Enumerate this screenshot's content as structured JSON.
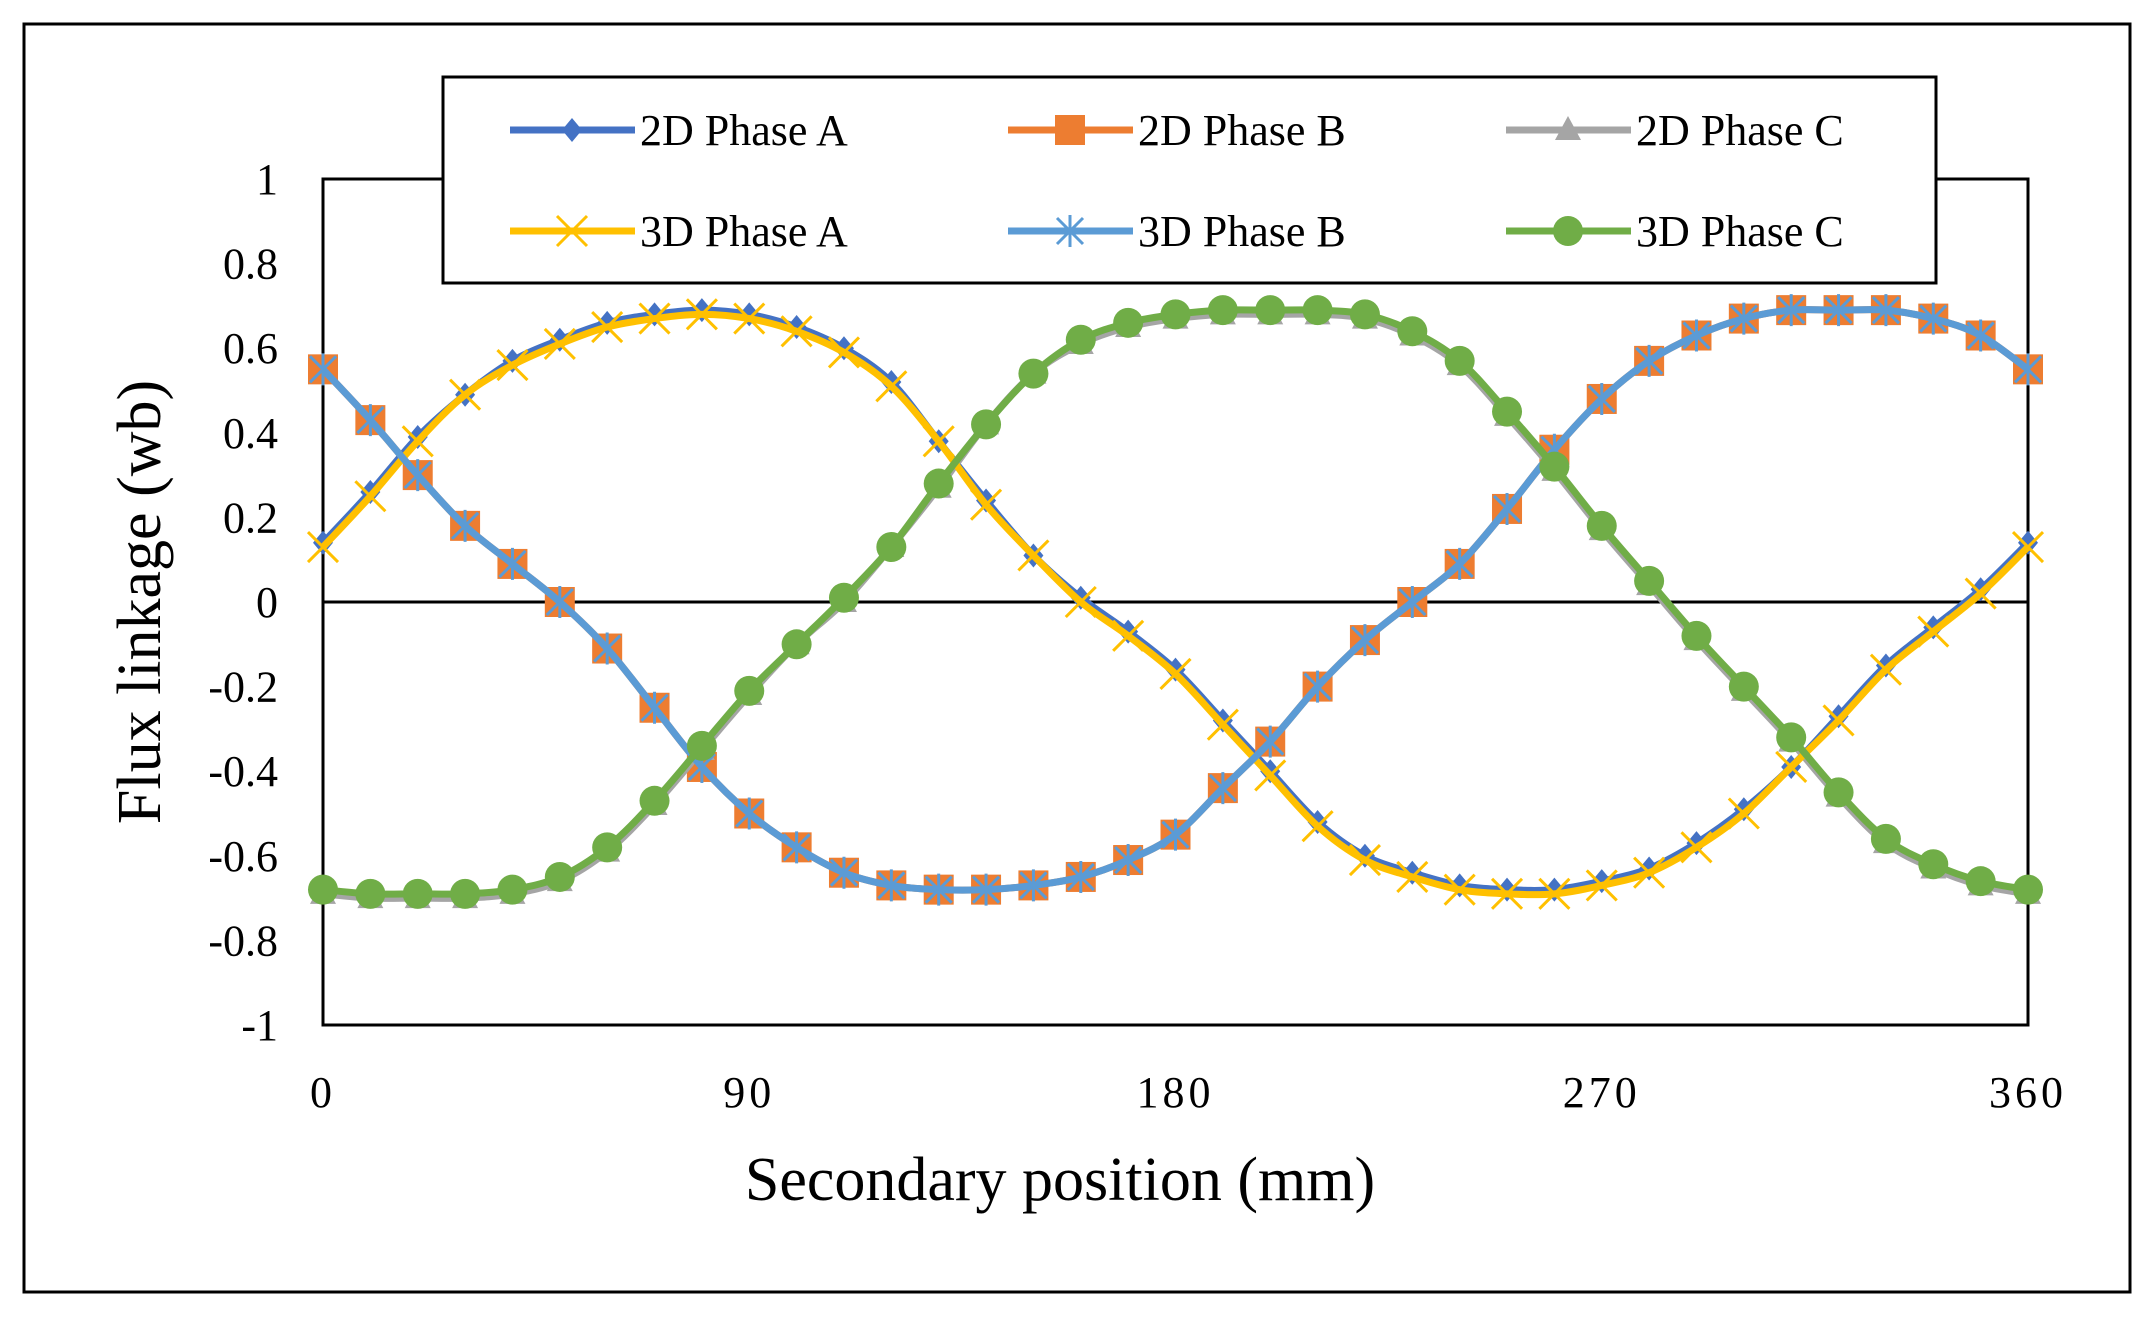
{
  "chart_data": {
    "type": "line",
    "title": "",
    "xlabel": "Secondary position (mm)",
    "ylabel": "Flux linkage (wb)",
    "xlim": [
      0,
      360
    ],
    "ylim": [
      -1,
      1
    ],
    "x_ticks": [
      0,
      90,
      180,
      270,
      360
    ],
    "x_tick_labels": [
      "0",
      "90",
      "180",
      "270",
      "360"
    ],
    "y_ticks": [
      1,
      0.8,
      0.6,
      0.4,
      0.2,
      0,
      -0.2,
      -0.4,
      -0.6,
      -0.8,
      -1
    ],
    "y_tick_labels": [
      "1",
      "0.8",
      "0.6",
      "0.4",
      "0.2",
      "0",
      "-0.2",
      "-0.4",
      "-0.6",
      "-0.8",
      "-1"
    ],
    "grid": false,
    "legend_position": "top",
    "x": [
      0,
      10,
      20,
      30,
      40,
      50,
      60,
      70,
      80,
      90,
      100,
      110,
      120,
      130,
      140,
      150,
      160,
      170,
      180,
      190,
      200,
      210,
      220,
      230,
      240,
      250,
      260,
      270,
      280,
      290,
      300,
      310,
      320,
      330,
      340,
      350,
      360
    ],
    "series": [
      {
        "name": "2D Phase A",
        "color": "#4472C4",
        "marker": "diamond",
        "values": [
          0.14,
          0.26,
          0.39,
          0.49,
          0.57,
          0.62,
          0.66,
          0.68,
          0.69,
          0.68,
          0.65,
          0.6,
          0.52,
          0.38,
          0.24,
          0.11,
          0.01,
          -0.07,
          -0.16,
          -0.28,
          -0.4,
          -0.52,
          -0.6,
          -0.64,
          -0.67,
          -0.68,
          -0.68,
          -0.66,
          -0.63,
          -0.57,
          -0.49,
          -0.39,
          -0.27,
          -0.15,
          -0.06,
          0.03,
          0.14
        ]
      },
      {
        "name": "2D Phase B",
        "color": "#ED7D31",
        "marker": "square",
        "values": [
          0.55,
          0.43,
          0.3,
          0.18,
          0.09,
          0.0,
          -0.11,
          -0.25,
          -0.39,
          -0.5,
          -0.58,
          -0.64,
          -0.67,
          -0.68,
          -0.68,
          -0.67,
          -0.65,
          -0.61,
          -0.55,
          -0.44,
          -0.33,
          -0.2,
          -0.09,
          0.0,
          0.09,
          0.22,
          0.36,
          0.48,
          0.57,
          0.63,
          0.67,
          0.69,
          0.69,
          0.69,
          0.67,
          0.63,
          0.55
        ]
      },
      {
        "name": "2D Phase C",
        "color": "#A5A5A5",
        "marker": "triangle",
        "values": [
          -0.69,
          -0.7,
          -0.7,
          -0.7,
          -0.69,
          -0.66,
          -0.59,
          -0.48,
          -0.35,
          -0.22,
          -0.1,
          0.0,
          0.13,
          0.27,
          0.42,
          0.54,
          0.61,
          0.65,
          0.67,
          0.68,
          0.68,
          0.68,
          0.67,
          0.63,
          0.56,
          0.44,
          0.31,
          0.17,
          0.04,
          -0.09,
          -0.21,
          -0.33,
          -0.46,
          -0.57,
          -0.63,
          -0.67,
          -0.69
        ]
      },
      {
        "name": "3D Phase A",
        "color": "#FFC000",
        "marker": "x",
        "values": [
          0.13,
          0.25,
          0.38,
          0.49,
          0.56,
          0.61,
          0.65,
          0.67,
          0.68,
          0.67,
          0.64,
          0.59,
          0.51,
          0.38,
          0.23,
          0.11,
          0.0,
          -0.08,
          -0.17,
          -0.29,
          -0.41,
          -0.53,
          -0.61,
          -0.65,
          -0.68,
          -0.69,
          -0.69,
          -0.67,
          -0.64,
          -0.58,
          -0.5,
          -0.39,
          -0.28,
          -0.16,
          -0.07,
          0.02,
          0.13
        ]
      },
      {
        "name": "3D Phase B",
        "color": "#5B9BD5",
        "marker": "asterisk",
        "values": [
          0.55,
          0.43,
          0.3,
          0.18,
          0.09,
          0.0,
          -0.11,
          -0.25,
          -0.39,
          -0.5,
          -0.58,
          -0.64,
          -0.67,
          -0.68,
          -0.68,
          -0.67,
          -0.65,
          -0.61,
          -0.55,
          -0.44,
          -0.33,
          -0.2,
          -0.09,
          0.0,
          0.09,
          0.22,
          0.36,
          0.48,
          0.57,
          0.63,
          0.67,
          0.69,
          0.69,
          0.69,
          0.67,
          0.63,
          0.55
        ]
      },
      {
        "name": "3D Phase C",
        "color": "#70AD47",
        "marker": "circle",
        "values": [
          -0.68,
          -0.69,
          -0.69,
          -0.69,
          -0.68,
          -0.65,
          -0.58,
          -0.47,
          -0.34,
          -0.21,
          -0.1,
          0.01,
          0.13,
          0.28,
          0.42,
          0.54,
          0.62,
          0.66,
          0.68,
          0.69,
          0.69,
          0.69,
          0.68,
          0.64,
          0.57,
          0.45,
          0.32,
          0.18,
          0.05,
          -0.08,
          -0.2,
          -0.32,
          -0.45,
          -0.56,
          -0.62,
          -0.66,
          -0.68
        ]
      }
    ]
  }
}
